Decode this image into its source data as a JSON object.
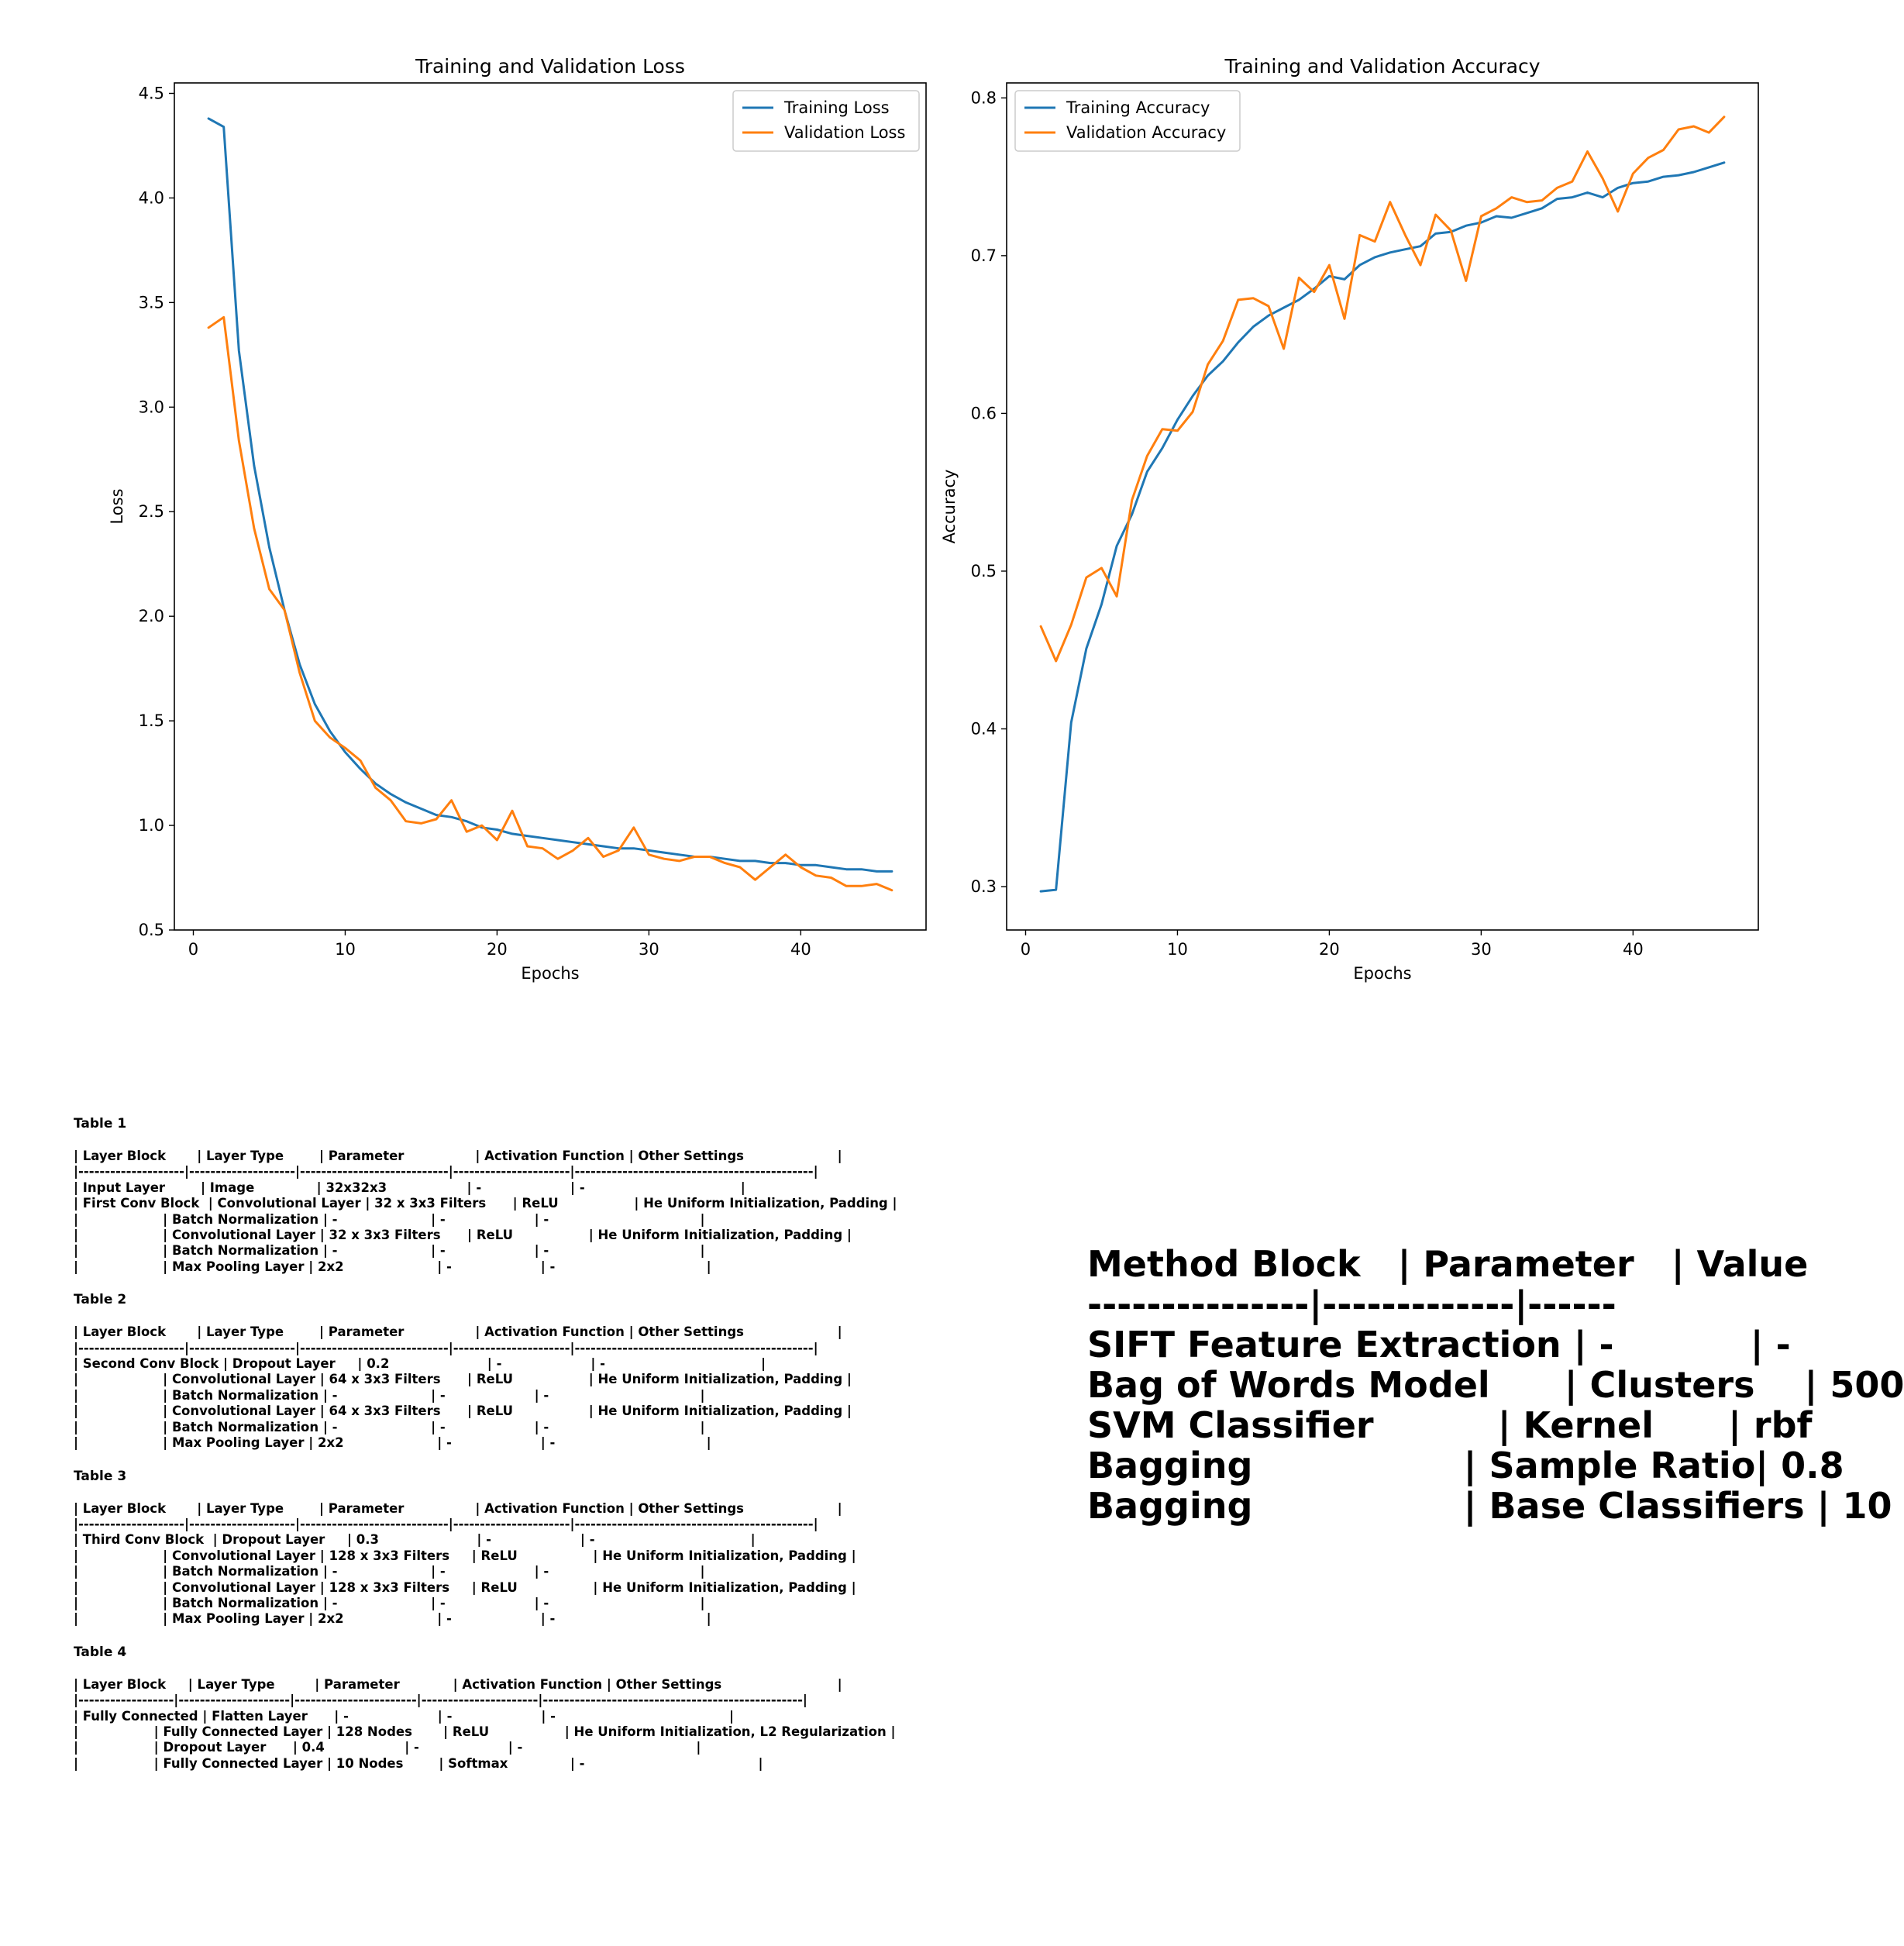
{
  "chart_data": [
    {
      "type": "line",
      "title": "Training and Validation Loss",
      "xlabel": "Epochs",
      "ylabel": "Loss",
      "xlim": [
        -1.25,
        48.25
      ],
      "ylim": [
        0.5,
        4.55
      ],
      "xticks": [
        "0",
        "10",
        "20",
        "30",
        "40"
      ],
      "yticks": [
        "0.5",
        "1.0",
        "1.5",
        "2.0",
        "2.5",
        "3.0",
        "3.5",
        "4.0",
        "4.5"
      ],
      "legend_position": "upper right",
      "grid": false,
      "x": [
        1,
        2,
        3,
        4,
        5,
        6,
        7,
        8,
        9,
        10,
        11,
        12,
        13,
        14,
        15,
        16,
        17,
        18,
        19,
        20,
        21,
        22,
        23,
        24,
        25,
        26,
        27,
        28,
        29,
        30,
        31,
        32,
        33,
        34,
        35,
        36,
        37,
        38,
        39,
        40,
        41,
        42,
        43,
        44,
        45,
        46
      ],
      "series": [
        {
          "name": "Training Loss",
          "color": "#1f77b4",
          "values": [
            4.38,
            4.34,
            3.27,
            2.72,
            2.33,
            2.03,
            1.77,
            1.58,
            1.45,
            1.35,
            1.27,
            1.2,
            1.15,
            1.11,
            1.08,
            1.05,
            1.04,
            1.02,
            0.99,
            0.98,
            0.96,
            0.95,
            0.94,
            0.93,
            0.92,
            0.91,
            0.9,
            0.89,
            0.89,
            0.88,
            0.87,
            0.86,
            0.85,
            0.85,
            0.84,
            0.83,
            0.83,
            0.82,
            0.82,
            0.81,
            0.81,
            0.8,
            0.79,
            0.79,
            0.78,
            0.78
          ]
        },
        {
          "name": "Validation Loss",
          "color": "#ff7f0e",
          "values": [
            3.38,
            3.43,
            2.84,
            2.42,
            2.13,
            2.03,
            1.73,
            1.5,
            1.42,
            1.37,
            1.31,
            1.18,
            1.12,
            1.02,
            1.01,
            1.03,
            1.12,
            0.97,
            1.0,
            0.93,
            1.07,
            0.9,
            0.89,
            0.84,
            0.88,
            0.94,
            0.85,
            0.88,
            0.99,
            0.86,
            0.84,
            0.83,
            0.85,
            0.85,
            0.82,
            0.8,
            0.74,
            0.8,
            0.86,
            0.8,
            0.76,
            0.75,
            0.71,
            0.71,
            0.72,
            0.69
          ]
        }
      ]
    },
    {
      "type": "line",
      "title": "Training and Validation Accuracy",
      "xlabel": "Epochs",
      "ylabel": "Accuracy",
      "xlim": [
        -1.25,
        48.25
      ],
      "ylim": [
        0.2725,
        0.8095
      ],
      "xticks": [
        "0",
        "10",
        "20",
        "30",
        "40"
      ],
      "yticks": [
        "0.3",
        "0.4",
        "0.5",
        "0.6",
        "0.7",
        "0.8"
      ],
      "legend_position": "upper left",
      "grid": false,
      "x": [
        1,
        2,
        3,
        4,
        5,
        6,
        7,
        8,
        9,
        10,
        11,
        12,
        13,
        14,
        15,
        16,
        17,
        18,
        19,
        20,
        21,
        22,
        23,
        24,
        25,
        26,
        27,
        28,
        29,
        30,
        31,
        32,
        33,
        34,
        35,
        36,
        37,
        38,
        39,
        40,
        41,
        42,
        43,
        44,
        45,
        46
      ],
      "series": [
        {
          "name": "Training Accuracy",
          "color": "#1f77b4",
          "values": [
            0.297,
            0.298,
            0.404,
            0.451,
            0.479,
            0.516,
            0.536,
            0.563,
            0.578,
            0.596,
            0.611,
            0.624,
            0.633,
            0.645,
            0.655,
            0.662,
            0.667,
            0.672,
            0.679,
            0.687,
            0.685,
            0.694,
            0.699,
            0.702,
            0.704,
            0.706,
            0.714,
            0.715,
            0.719,
            0.721,
            0.725,
            0.724,
            0.727,
            0.73,
            0.736,
            0.737,
            0.74,
            0.737,
            0.743,
            0.746,
            0.747,
            0.75,
            0.751,
            0.753,
            0.756,
            0.759
          ]
        },
        {
          "name": "Validation Accuracy",
          "color": "#ff7f0e",
          "values": [
            0.465,
            0.443,
            0.466,
            0.496,
            0.502,
            0.484,
            0.545,
            0.573,
            0.59,
            0.589,
            0.601,
            0.631,
            0.646,
            0.672,
            0.673,
            0.668,
            0.641,
            0.686,
            0.677,
            0.694,
            0.66,
            0.713,
            0.709,
            0.734,
            0.713,
            0.694,
            0.726,
            0.716,
            0.684,
            0.725,
            0.73,
            0.737,
            0.734,
            0.735,
            0.743,
            0.747,
            0.766,
            0.749,
            0.728,
            0.752,
            0.762,
            0.767,
            0.78,
            0.782,
            0.778,
            0.788
          ]
        }
      ]
    }
  ],
  "tables": [
    {
      "title": "Table 1",
      "lines": [
        "| Layer Block       | Layer Type        | Parameter                | Activation Function | Other Settings                     |",
        "|--------------------|--------------------|----------------------------|----------------------|---------------------------------------------|",
        "| Input Layer        | Image              | 32x32x3                  | -                    | -                                   |",
        "| First Conv Block  | Convolutional Layer | 32 x 3x3 Filters      | ReLU                 | He Uniform Initialization, Padding |",
        "|                   | Batch Normalization | -                     | -                    | -                                  |",
        "|                   | Convolutional Layer | 32 x 3x3 Filters      | ReLU                 | He Uniform Initialization, Padding |",
        "|                   | Batch Normalization | -                     | -                    | -                                  |",
        "|                   | Max Pooling Layer | 2x2                     | -                    | -                                  |"
      ]
    },
    {
      "title": "Table 2",
      "lines": [
        "| Layer Block       | Layer Type        | Parameter                | Activation Function | Other Settings                     |",
        "|--------------------|--------------------|----------------------------|----------------------|---------------------------------------------|",
        "| Second Conv Block | Dropout Layer     | 0.2                      | -                    | -                                   |",
        "|                   | Convolutional Layer | 64 x 3x3 Filters      | ReLU                 | He Uniform Initialization, Padding |",
        "|                   | Batch Normalization | -                     | -                    | -                                  |",
        "|                   | Convolutional Layer | 64 x 3x3 Filters      | ReLU                 | He Uniform Initialization, Padding |",
        "|                   | Batch Normalization | -                     | -                    | -                                  |",
        "|                   | Max Pooling Layer | 2x2                     | -                    | -                                  |"
      ]
    },
    {
      "title": "Table 3",
      "lines": [
        "| Layer Block       | Layer Type        | Parameter                | Activation Function | Other Settings                     |",
        "|--------------------|--------------------|----------------------------|----------------------|---------------------------------------------|",
        "| Third Conv Block  | Dropout Layer     | 0.3                      | -                    | -                                   |",
        "|                   | Convolutional Layer | 128 x 3x3 Filters     | ReLU                 | He Uniform Initialization, Padding |",
        "|                   | Batch Normalization | -                     | -                    | -                                  |",
        "|                   | Convolutional Layer | 128 x 3x3 Filters     | ReLU                 | He Uniform Initialization, Padding |",
        "|                   | Batch Normalization | -                     | -                    | -                                  |",
        "|                   | Max Pooling Layer | 2x2                     | -                    | -                                  |"
      ]
    },
    {
      "title": "Table 4",
      "lines": [
        "| Layer Block     | Layer Type         | Parameter            | Activation Function | Other Settings                          |",
        "|------------------|---------------------|-----------------------|----------------------|-------------------------------------------------|",
        "| Fully Connected | Flatten Layer      | -                    | -                    | -                                       |",
        "|                 | Fully Connected Layer | 128 Nodes       | ReLU                 | He Uniform Initialization, L2 Regularization |",
        "|                 | Dropout Layer      | 0.4                  | -                    | -                                       |",
        "|                 | Fully Connected Layer | 10 Nodes        | Softmax              | -                                       |"
      ]
    }
  ],
  "method_table": {
    "lines": [
      "Method Block   | Parameter   | Value",
      "---------------|-------------|------",
      "SIFT Feature Extraction | -           | -",
      "Bag of Words Model      | Clusters    | 500",
      "SVM Classifier          | Kernel      | rbf",
      "Bagging                 | Sample Ratio| 0.8",
      "Bagging                 | Base Classifiers | 10"
    ]
  }
}
